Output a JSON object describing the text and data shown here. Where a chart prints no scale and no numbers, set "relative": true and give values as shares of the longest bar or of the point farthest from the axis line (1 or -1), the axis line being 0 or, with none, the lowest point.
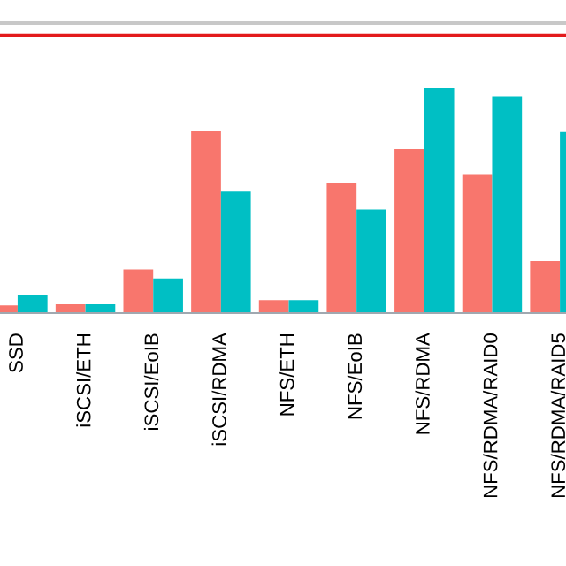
{
  "chart_data": {
    "type": "bar",
    "relative": true,
    "categories": [
      "SSD",
      "iSCSI/ETH",
      "iSCSI/EoIB",
      "iSCSI/RDMA",
      "NFS/ETH",
      "NFS/EoIB",
      "NFS/RDMA",
      "NFS/RDMA/RAID0",
      "NFS/RDMA/RAID5"
    ],
    "series": [
      {
        "color": "#f8766d",
        "values": [
          0.034,
          0.039,
          0.195,
          0.811,
          0.058,
          0.579,
          0.732,
          0.616,
          0.232
        ]
      },
      {
        "color": "#00bfc4",
        "values": [
          0.079,
          0.039,
          0.155,
          0.542,
          0.058,
          0.463,
          1,
          0.963,
          0.808
        ]
      }
    ],
    "ref_lines": [
      {
        "axis": "y",
        "value": 1.237,
        "color": "#e31a1c"
      }
    ],
    "grid": false,
    "legend": false
  }
}
